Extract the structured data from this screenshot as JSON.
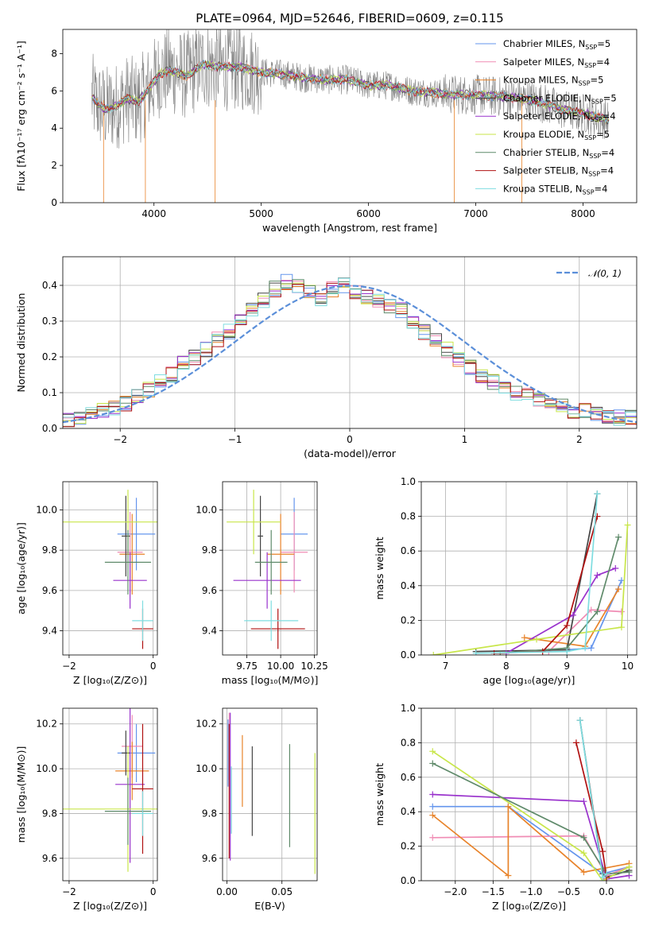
{
  "figure": {
    "title": "PLATE=0964, MJD=52646, FIBERID=0609, z=0.115"
  },
  "colors": {
    "Chabrier MILES": "#6495ed",
    "Salpeter MILES": "#f08cb4",
    "Kroupa MILES": "#e8832a",
    "Chabrier ELODIE": "#444444",
    "Salpeter ELODIE": "#9932cc",
    "Kroupa ELODIE": "#c8e64a",
    "Chabrier STELIB": "#5f8a6a",
    "Salpeter STELIB": "#b01010",
    "Kroupa STELIB": "#7fdde0"
  },
  "chart_data": [
    {
      "id": "spectrum",
      "type": "line",
      "title": "PLATE=0964, MJD=52646, FIBERID=0609, z=0.115",
      "xlabel": "wavelength [Angstrom, rest frame]",
      "ylabel": "Flux [fλ10⁻¹⁷ erg cm⁻² s⁻¹ A⁻¹]",
      "xlim": [
        3150,
        8500
      ],
      "ylim": [
        0,
        9.3
      ],
      "xticks": [
        "4000",
        "5000",
        "6000",
        "7000",
        "8000"
      ],
      "yticks": [
        "0",
        "2",
        "4",
        "6",
        "8"
      ],
      "data_series": {
        "name": "data",
        "color": "#808080"
      },
      "continuum": [
        [
          3420,
          5.7
        ],
        [
          3470,
          5.3
        ],
        [
          3550,
          5.0
        ],
        [
          3650,
          5.2
        ],
        [
          3750,
          5.6
        ],
        [
          3850,
          5.4
        ],
        [
          3950,
          6.1
        ],
        [
          4050,
          6.9
        ],
        [
          4150,
          7.1
        ],
        [
          4300,
          6.8
        ],
        [
          4450,
          7.4
        ],
        [
          4600,
          7.3
        ],
        [
          4800,
          7.3
        ],
        [
          5000,
          7.0
        ],
        [
          5200,
          6.9
        ],
        [
          5400,
          6.7
        ],
        [
          5600,
          6.6
        ],
        [
          5800,
          6.6
        ],
        [
          6000,
          6.3
        ],
        [
          6200,
          6.3
        ],
        [
          6400,
          6.0
        ],
        [
          6600,
          5.9
        ],
        [
          6800,
          5.8
        ],
        [
          7000,
          5.8
        ],
        [
          7200,
          5.7
        ],
        [
          7400,
          5.6
        ],
        [
          7600,
          5.4
        ],
        [
          7800,
          5.0
        ],
        [
          8000,
          4.8
        ],
        [
          8200,
          4.5
        ],
        [
          8240,
          4.4
        ]
      ],
      "data_range": [
        3420,
        8240
      ],
      "legend": [
        {
          "label": "Chabrier MILES, N",
          "sub": "SSP",
          "suffix": "=5"
        },
        {
          "label": "Salpeter MILES, N",
          "sub": "SSP",
          "suffix": "=4"
        },
        {
          "label": "Kroupa MILES, N",
          "sub": "SSP",
          "suffix": "=5"
        },
        {
          "label": "Chabrier ELODIE, N",
          "sub": "SSP",
          "suffix": "=5"
        },
        {
          "label": "Salpeter ELODIE, N",
          "sub": "SSP",
          "suffix": "=4"
        },
        {
          "label": "Kroupa ELODIE, N",
          "sub": "SSP",
          "suffix": "=5"
        },
        {
          "label": "Chabrier STELIB, N",
          "sub": "SSP",
          "suffix": "=4"
        },
        {
          "label": "Salpeter STELIB, N",
          "sub": "SSP",
          "suffix": "=4"
        },
        {
          "label": "Kroupa STELIB, N",
          "sub": "SSP",
          "suffix": "=4"
        }
      ]
    },
    {
      "id": "residuals",
      "type": "line",
      "xlabel": "(data-model)/error",
      "ylabel": "Normed distribution",
      "xlim": [
        -2.5,
        2.5
      ],
      "ylim": [
        0,
        0.48
      ],
      "xticks": [
        "−2",
        "−1",
        "0",
        "1",
        "2"
      ],
      "yticks": [
        "0.0",
        "0.1",
        "0.2",
        "0.3",
        "0.4"
      ],
      "gaussian_label": "𝒩(0, 1)",
      "base_hist": [
        0.02,
        0.03,
        0.04,
        0.05,
        0.06,
        0.07,
        0.09,
        0.11,
        0.13,
        0.15,
        0.18,
        0.2,
        0.22,
        0.25,
        0.27,
        0.3,
        0.33,
        0.36,
        0.39,
        0.41,
        0.4,
        0.38,
        0.36,
        0.39,
        0.4,
        0.38,
        0.37,
        0.36,
        0.34,
        0.33,
        0.3,
        0.27,
        0.25,
        0.22,
        0.19,
        0.17,
        0.15,
        0.13,
        0.11,
        0.1,
        0.09,
        0.08,
        0.07,
        0.06,
        0.05,
        0.05,
        0.04,
        0.03,
        0.03,
        0.03
      ]
    },
    {
      "id": "z-age",
      "type": "scatter",
      "xlabel": "Z [log₁₀(Z/Z⊙)]",
      "ylabel": "age  [log₁₀(age/yr)]",
      "xlim": [
        -2.15,
        0.1
      ],
      "ylim": [
        9.28,
        10.14
      ],
      "xticks": [
        "−2",
        "0"
      ],
      "yticks": [
        "9.4",
        "9.6",
        "9.8",
        "10.0"
      ],
      "points": [
        {
          "m": "Chabrier MILES",
          "x": -0.4,
          "y": 9.88,
          "xe": 0.45,
          "ye": 0.18
        },
        {
          "m": "Salpeter MILES",
          "x": -0.55,
          "y": 9.79,
          "xe": 0.3,
          "ye": 0.2
        },
        {
          "m": "Kroupa MILES",
          "x": -0.5,
          "y": 9.78,
          "xe": 0.3,
          "ye": 0.2
        },
        {
          "m": "Chabrier ELODIE",
          "x": -0.65,
          "y": 9.87,
          "xe": 0.1,
          "ye": 0.2
        },
        {
          "m": "Salpeter ELODIE",
          "x": -0.55,
          "y": 9.65,
          "xe": 0.4,
          "ye": 0.14
        },
        {
          "m": "Kroupa ELODIE",
          "x": -0.6,
          "y": 9.94,
          "xe": 1.55,
          "ye": 0.16
        },
        {
          "m": "Chabrier STELIB",
          "x": -0.6,
          "y": 9.74,
          "xe": 0.55,
          "ye": 0.16
        },
        {
          "m": "Salpeter STELIB",
          "x": -0.25,
          "y": 9.41,
          "xe": 0.25,
          "ye": 0.1
        },
        {
          "m": "Kroupa STELIB",
          "x": -0.25,
          "y": 9.45,
          "xe": 0.25,
          "ye": 0.1
        }
      ]
    },
    {
      "id": "mass-age",
      "type": "scatter",
      "xlabel": "mass [log₁₀(M/M⊙)]",
      "ylabel": "",
      "xlim": [
        9.57,
        10.27
      ],
      "ylim": [
        9.28,
        10.14
      ],
      "xticks": [
        "9.75",
        "10.00",
        "10.25"
      ],
      "yticks": [
        "9.4",
        "9.6",
        "9.8",
        "10.0"
      ],
      "points": [
        {
          "m": "Chabrier MILES",
          "x": 10.1,
          "y": 9.88,
          "xe": 0.1,
          "ye": 0.18
        },
        {
          "m": "Salpeter MILES",
          "x": 10.1,
          "y": 9.79,
          "xe": 0.1,
          "ye": 0.2
        },
        {
          "m": "Kroupa MILES",
          "x": 10.0,
          "y": 9.78,
          "xe": 0.1,
          "ye": 0.2
        },
        {
          "m": "Chabrier ELODIE",
          "x": 9.85,
          "y": 9.87,
          "xe": 0.02,
          "ye": 0.2
        },
        {
          "m": "Salpeter ELODIE",
          "x": 9.9,
          "y": 9.65,
          "xe": 0.25,
          "ye": 0.14
        },
        {
          "m": "Kroupa ELODIE",
          "x": 9.8,
          "y": 9.94,
          "xe": 0.2,
          "ye": 0.16
        },
        {
          "m": "Chabrier STELIB",
          "x": 9.93,
          "y": 9.74,
          "xe": 0.12,
          "ye": 0.16
        },
        {
          "m": "Salpeter STELIB",
          "x": 9.98,
          "y": 9.41,
          "xe": 0.2,
          "ye": 0.1
        },
        {
          "m": "Kroupa STELIB",
          "x": 9.93,
          "y": 9.45,
          "xe": 0.2,
          "ye": 0.1
        }
      ]
    },
    {
      "id": "age-weight",
      "type": "line",
      "xlabel": "age  [log₁₀(age/yr)]",
      "ylabel": "mass weight",
      "xlim": [
        6.6,
        10.15
      ],
      "ylim": [
        0,
        1.0
      ],
      "xticks": [
        "7",
        "8",
        "9",
        "10"
      ],
      "yticks": [
        "0.0",
        "0.2",
        "0.4",
        "0.6",
        "0.8",
        "1.0"
      ],
      "lines": [
        {
          "m": "Chabrier MILES",
          "x": [
            9.0,
            9.4,
            9.9
          ],
          "y": [
            0.03,
            0.04,
            0.43
          ]
        },
        {
          "m": "Salpeter MILES",
          "x": [
            8.7,
            9.4,
            9.9
          ],
          "y": [
            0.02,
            0.26,
            0.25
          ]
        },
        {
          "m": "Kroupa MILES",
          "x": [
            8.3,
            9.3,
            9.85
          ],
          "y": [
            0.1,
            0.05,
            0.38
          ]
        },
        {
          "m": "Chabrier ELODIE",
          "x": [
            7.5,
            9.0,
            9.5
          ],
          "y": [
            0.02,
            0.03,
            0.93
          ]
        },
        {
          "m": "Salpeter ELODIE",
          "x": [
            8.0,
            9.1,
            9.5,
            9.8
          ],
          "y": [
            0.01,
            0.23,
            0.46,
            0.5
          ]
        },
        {
          "m": "Kroupa ELODIE",
          "x": [
            6.8,
            8.5,
            9.9,
            10.0
          ],
          "y": [
            0.0,
            0.09,
            0.16,
            0.75
          ]
        },
        {
          "m": "Chabrier STELIB",
          "x": [
            7.9,
            9.0,
            9.5,
            9.85
          ],
          "y": [
            0.01,
            0.04,
            0.25,
            0.68
          ]
        },
        {
          "m": "Salpeter STELIB",
          "x": [
            7.8,
            8.6,
            9.0,
            9.5
          ],
          "y": [
            0.01,
            0.02,
            0.17,
            0.8
          ]
        },
        {
          "m": "Kroupa STELIB",
          "x": [
            7.5,
            9.0,
            9.3,
            9.5
          ],
          "y": [
            0.01,
            0.02,
            0.04,
            0.93
          ]
        }
      ]
    },
    {
      "id": "z-mass",
      "type": "scatter",
      "xlabel": "Z [log₁₀(Z/Z⊙)]",
      "ylabel": "mass [log₁₀(M/M⊙)]",
      "xlim": [
        -2.15,
        0.1
      ],
      "ylim": [
        9.5,
        10.27
      ],
      "xticks": [
        "−2",
        "0"
      ],
      "yticks": [
        "9.6",
        "9.8",
        "10.0",
        "10.2"
      ],
      "points": [
        {
          "m": "Chabrier MILES",
          "x": -0.4,
          "y": 10.07,
          "xe": 0.45,
          "ye": 0.13
        },
        {
          "m": "Salpeter MILES",
          "x": -0.5,
          "y": 10.1,
          "xe": 0.25,
          "ye": 0.14
        },
        {
          "m": "Kroupa MILES",
          "x": -0.5,
          "y": 9.99,
          "xe": 0.4,
          "ye": 0.13
        },
        {
          "m": "Chabrier ELODIE",
          "x": -0.65,
          "y": 10.07,
          "xe": 0.1,
          "ye": 0.1
        },
        {
          "m": "Salpeter ELODIE",
          "x": -0.55,
          "y": 9.93,
          "xe": 0.35,
          "ye": 0.35
        },
        {
          "m": "Kroupa ELODIE",
          "x": -0.6,
          "y": 9.82,
          "xe": 1.55,
          "ye": 0.28
        },
        {
          "m": "Chabrier STELIB",
          "x": -0.6,
          "y": 9.81,
          "xe": 0.55,
          "ye": 0.15
        },
        {
          "m": "Salpeter STELIB",
          "x": -0.25,
          "y": 9.91,
          "xe": 0.25,
          "ye": 0.29
        },
        {
          "m": "Kroupa STELIB",
          "x": -0.25,
          "y": 9.8,
          "xe": 0.25,
          "ye": 0.1
        }
      ]
    },
    {
      "id": "ebv-mass",
      "type": "scatter",
      "xlabel": "E(B-V)",
      "ylabel": "",
      "xlim": [
        -0.004,
        0.082
      ],
      "ylim": [
        9.5,
        10.27
      ],
      "xticks": [
        "0.00",
        "0.05"
      ],
      "yticks": [
        "9.6",
        "9.8",
        "10.0",
        "10.2"
      ],
      "points": [
        {
          "m": "Chabrier MILES",
          "x": 0.001,
          "y": 10.07,
          "xe": 0,
          "ye": 0.15
        },
        {
          "m": "Salpeter MILES",
          "x": 0.002,
          "y": 10.1,
          "xe": 0,
          "ye": 0.15
        },
        {
          "m": "Kroupa MILES",
          "x": 0.014,
          "y": 9.99,
          "xe": 0,
          "ye": 0.16
        },
        {
          "m": "Chabrier ELODIE",
          "x": 0.023,
          "y": 9.9,
          "xe": 0,
          "ye": 0.2
        },
        {
          "m": "Salpeter ELODIE",
          "x": 0.003,
          "y": 9.92,
          "xe": 0,
          "ye": 0.33
        },
        {
          "m": "Kroupa ELODIE",
          "x": 0.08,
          "y": 9.8,
          "xe": 0,
          "ye": 0.27
        },
        {
          "m": "Chabrier STELIB",
          "x": 0.057,
          "y": 9.88,
          "xe": 0,
          "ye": 0.23
        },
        {
          "m": "Salpeter STELIB",
          "x": 0.002,
          "y": 9.9,
          "xe": 0,
          "ye": 0.3
        },
        {
          "m": "Kroupa STELIB",
          "x": 0.004,
          "y": 9.86,
          "xe": 0,
          "ye": 0.15
        }
      ]
    },
    {
      "id": "z-weight",
      "type": "line",
      "xlabel": "Z [log₁₀(Z/Z⊙)]",
      "ylabel": "mass weight",
      "xlim": [
        -2.45,
        0.4
      ],
      "ylim": [
        0,
        1.0
      ],
      "xticks": [
        "−2.0",
        "−1.5",
        "−1.0",
        "−0.5",
        "0.0"
      ],
      "yticks": [
        "0.0",
        "0.2",
        "0.4",
        "0.6",
        "0.8",
        "1.0"
      ],
      "lines": [
        {
          "m": "Chabrier MILES",
          "x": [
            -2.3,
            -1.3,
            -0.05,
            0.3
          ],
          "y": [
            0.43,
            0.43,
            0.04,
            0.08
          ]
        },
        {
          "m": "Salpeter MILES",
          "x": [
            -2.3,
            -0.3,
            0.0,
            0.3
          ],
          "y": [
            0.25,
            0.26,
            0.03,
            0.08
          ]
        },
        {
          "m": "Kroupa MILES",
          "x": [
            -2.3,
            -1.3,
            -1.3,
            -0.3,
            0.3
          ],
          "y": [
            0.38,
            0.03,
            0.43,
            0.05,
            0.1
          ]
        },
        {
          "m": "Chabrier ELODIE",
          "x": [
            -0.35,
            -0.05,
            0.0,
            0.3
          ],
          "y": [
            0.93,
            0.04,
            0.02,
            0.06
          ]
        },
        {
          "m": "Salpeter ELODIE",
          "x": [
            -2.3,
            -0.3,
            0.0,
            0.3
          ],
          "y": [
            0.5,
            0.46,
            0.01,
            0.03
          ]
        },
        {
          "m": "Kroupa ELODIE",
          "x": [
            -2.3,
            -0.3,
            -0.05,
            0.3
          ],
          "y": [
            0.75,
            0.16,
            0.0,
            0.08
          ]
        },
        {
          "m": "Chabrier STELIB",
          "x": [
            -2.3,
            -0.3,
            0.0,
            0.3
          ],
          "y": [
            0.68,
            0.25,
            0.04,
            0.05
          ]
        },
        {
          "m": "Salpeter STELIB",
          "x": [
            -0.4,
            -0.05,
            0.0
          ],
          "y": [
            0.8,
            0.17,
            0.02
          ]
        },
        {
          "m": "Kroupa STELIB",
          "x": [
            -0.35,
            -0.05,
            0.0
          ],
          "y": [
            0.93,
            0.02,
            0.04
          ]
        }
      ]
    }
  ]
}
